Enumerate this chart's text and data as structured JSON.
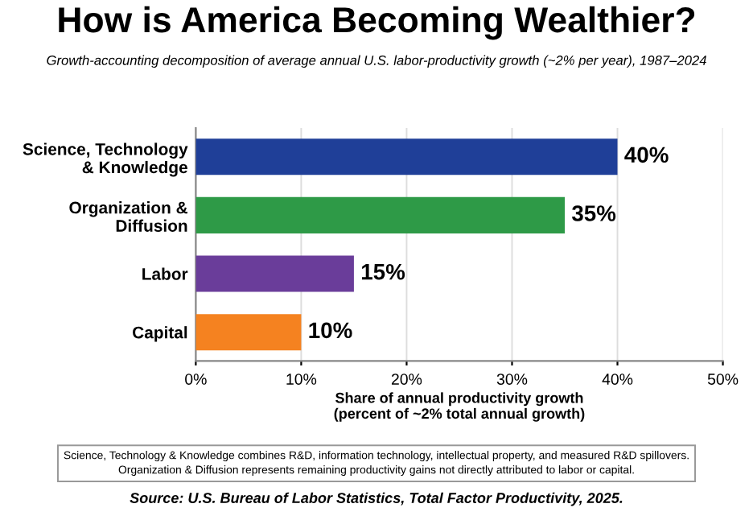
{
  "chart_data": {
    "type": "bar",
    "orientation": "horizontal",
    "title": "How is America Becoming Wealthier?",
    "subtitle": "Growth-accounting decomposition of average annual U.S. labor-productivity growth (~2% per year), 1987–2024",
    "categories": [
      "Science, Technology\n& Knowledge",
      "Organization &\nDiffusion",
      "Labor",
      "Capital"
    ],
    "values": [
      40,
      35,
      15,
      10
    ],
    "colors": [
      "#1f3f98",
      "#2e9a47",
      "#6a3d9a",
      "#f58220"
    ],
    "value_labels": [
      "40%",
      "35%",
      "15%",
      "10%"
    ],
    "xlabel": "Share of annual productivity growth\n(percent of ~2% total annual growth)",
    "xlim": [
      0,
      50
    ],
    "xticks": [
      {
        "value": 0,
        "label": "0%"
      },
      {
        "value": 10,
        "label": "10%"
      },
      {
        "value": 20,
        "label": "20%"
      },
      {
        "value": 30,
        "label": "30%"
      },
      {
        "value": 40,
        "label": "40%"
      },
      {
        "value": 50,
        "label": "50%"
      }
    ],
    "grid": "x",
    "annotations": [
      "Science, Technology & Knowledge combines R&D, information technology, intellectual property, and measured R&D spillovers.\nOrganization & Diffusion represents remaining productivity gains not directly attributed to labor or capital.",
      "Source: U.S. Bureau of Labor Statistics, Total Factor Productivity, 2025."
    ]
  }
}
